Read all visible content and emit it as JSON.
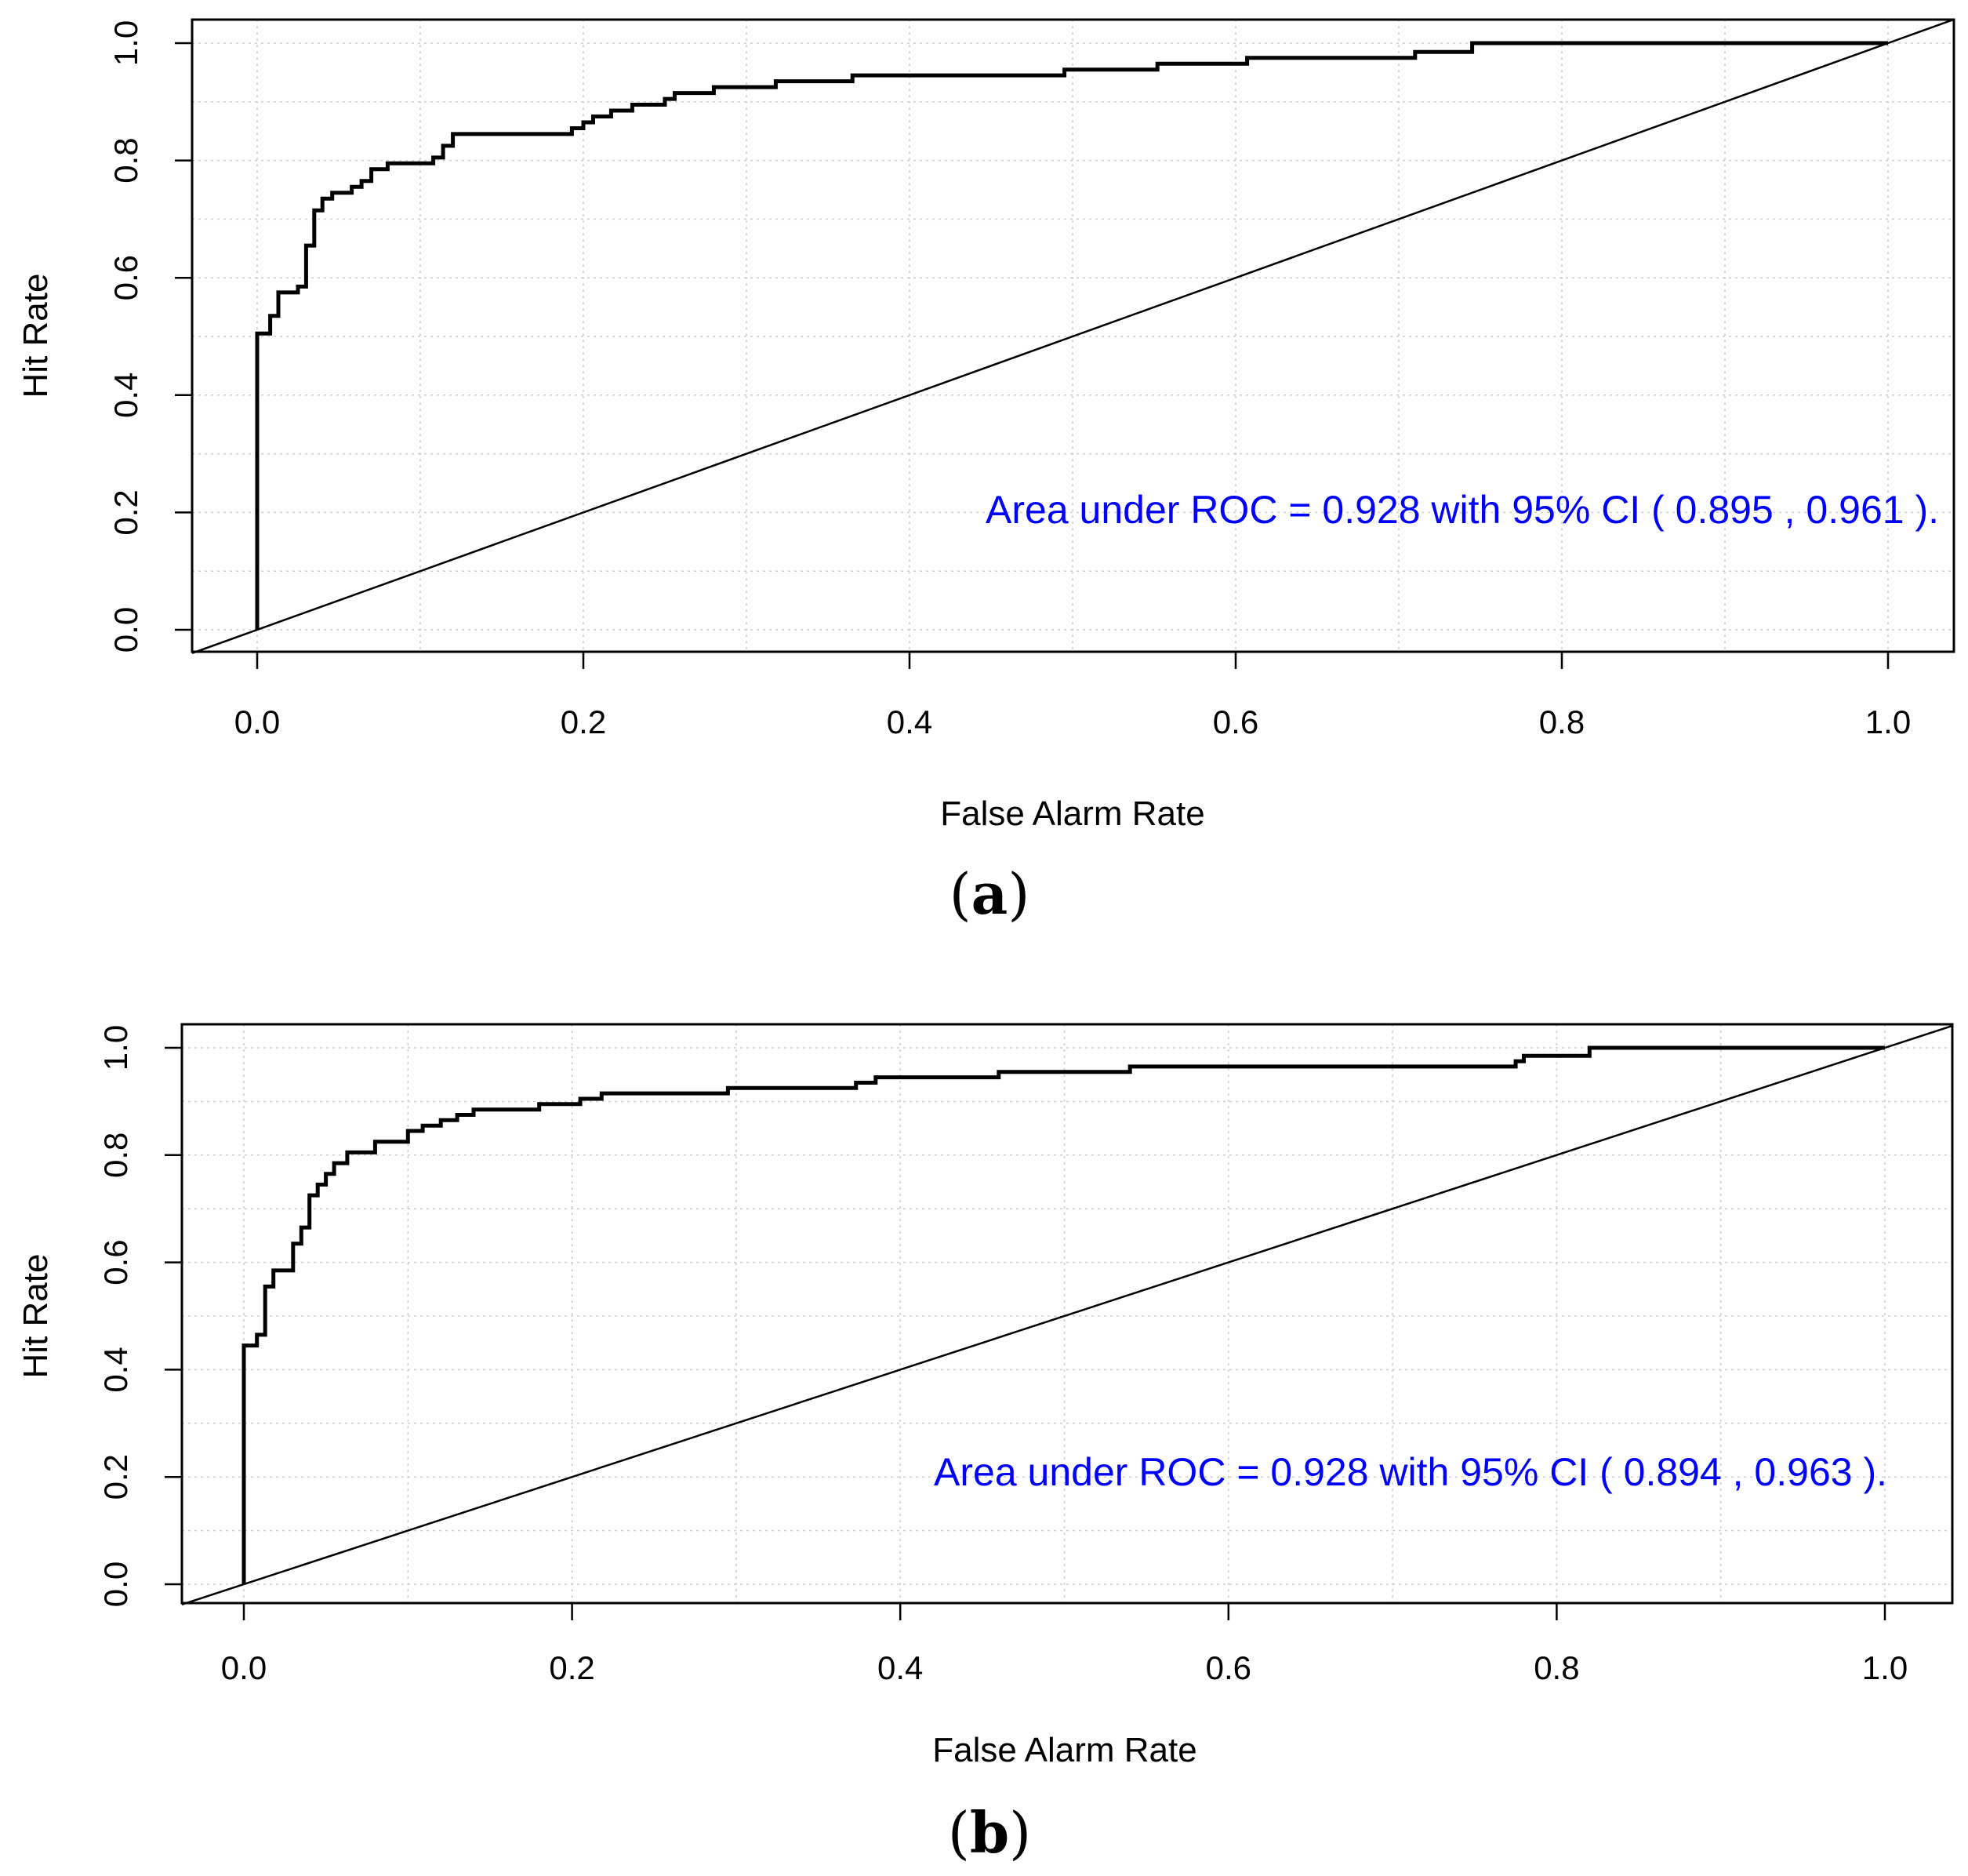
{
  "chart_data": [
    {
      "type": "line",
      "panel_label": "a",
      "xlabel": "False Alarm Rate",
      "ylabel": "Hit Rate",
      "xlim": [
        0,
        1
      ],
      "ylim": [
        0,
        1
      ],
      "xticks": [
        "0.0",
        "0.2",
        "0.4",
        "0.6",
        "0.8",
        "1.0"
      ],
      "yticks": [
        "0.0",
        "0.2",
        "0.4",
        "0.6",
        "0.8",
        "1.0"
      ],
      "grid": true,
      "annotation": "Area under ROC =  0.928 with 95% CI ( 0.895 , 0.961 ).",
      "annotation_color": "#0000ff",
      "reference_line": {
        "x": [
          0,
          1
        ],
        "y": [
          0,
          1
        ]
      },
      "series": [
        {
          "name": "ROC",
          "x": [
            0,
            0,
            0.008,
            0.008,
            0.013,
            0.013,
            0.025,
            0.025,
            0.03,
            0.03,
            0.035,
            0.035,
            0.04,
            0.04,
            0.046,
            0.046,
            0.058,
            0.058,
            0.064,
            0.064,
            0.07,
            0.07,
            0.08,
            0.08,
            0.108,
            0.108,
            0.114,
            0.114,
            0.12,
            0.12,
            0.193,
            0.193,
            0.2,
            0.2,
            0.206,
            0.206,
            0.217,
            0.217,
            0.23,
            0.23,
            0.25,
            0.25,
            0.256,
            0.256,
            0.28,
            0.28,
            0.318,
            0.318,
            0.365,
            0.365,
            0.495,
            0.495,
            0.552,
            0.552,
            0.607,
            0.607,
            0.71,
            0.71,
            0.745,
            0.745,
            1.0
          ],
          "y": [
            0,
            0.505,
            0.505,
            0.535,
            0.535,
            0.575,
            0.575,
            0.585,
            0.585,
            0.655,
            0.655,
            0.715,
            0.715,
            0.735,
            0.735,
            0.745,
            0.745,
            0.755,
            0.755,
            0.765,
            0.765,
            0.785,
            0.785,
            0.795,
            0.795,
            0.805,
            0.805,
            0.825,
            0.825,
            0.845,
            0.845,
            0.855,
            0.855,
            0.865,
            0.865,
            0.875,
            0.875,
            0.885,
            0.885,
            0.895,
            0.895,
            0.905,
            0.905,
            0.915,
            0.915,
            0.925,
            0.925,
            0.935,
            0.935,
            0.945,
            0.945,
            0.955,
            0.955,
            0.965,
            0.965,
            0.975,
            0.975,
            0.985,
            0.985,
            1.0,
            1.0
          ]
        }
      ]
    },
    {
      "type": "line",
      "panel_label": "b",
      "xlabel": "False Alarm Rate",
      "ylabel": "Hit Rate",
      "xlim": [
        0,
        1
      ],
      "ylim": [
        0,
        1
      ],
      "xticks": [
        "0.0",
        "0.2",
        "0.4",
        "0.6",
        "0.8",
        "1.0"
      ],
      "yticks": [
        "0.0",
        "0.2",
        "0.4",
        "0.6",
        "0.8",
        "1.0"
      ],
      "grid": true,
      "annotation": "Area under ROC =  0.928 with 95% CI ( 0.894 , 0.963 ).",
      "annotation_color": "#0000ff",
      "reference_line": {
        "x": [
          0,
          1
        ],
        "y": [
          0,
          1
        ]
      },
      "series": [
        {
          "name": "ROC",
          "x": [
            0,
            0,
            0.008,
            0.008,
            0.013,
            0.013,
            0.018,
            0.018,
            0.03,
            0.03,
            0.035,
            0.035,
            0.04,
            0.04,
            0.045,
            0.045,
            0.05,
            0.05,
            0.055,
            0.055,
            0.063,
            0.063,
            0.08,
            0.08,
            0.1,
            0.1,
            0.109,
            0.109,
            0.12,
            0.12,
            0.13,
            0.13,
            0.14,
            0.14,
            0.18,
            0.18,
            0.205,
            0.205,
            0.218,
            0.218,
            0.295,
            0.295,
            0.373,
            0.373,
            0.385,
            0.385,
            0.46,
            0.46,
            0.54,
            0.54,
            0.775,
            0.775,
            0.78,
            0.78,
            0.82,
            0.82,
            1.0
          ],
          "y": [
            0,
            0.445,
            0.445,
            0.465,
            0.465,
            0.555,
            0.555,
            0.585,
            0.585,
            0.635,
            0.635,
            0.665,
            0.665,
            0.725,
            0.725,
            0.745,
            0.745,
            0.765,
            0.765,
            0.785,
            0.785,
            0.805,
            0.805,
            0.825,
            0.825,
            0.845,
            0.845,
            0.855,
            0.855,
            0.865,
            0.865,
            0.875,
            0.875,
            0.885,
            0.885,
            0.895,
            0.895,
            0.905,
            0.905,
            0.915,
            0.915,
            0.925,
            0.925,
            0.935,
            0.935,
            0.945,
            0.945,
            0.955,
            0.955,
            0.965,
            0.965,
            0.975,
            0.975,
            0.985,
            0.985,
            1.0,
            1.0
          ]
        }
      ]
    }
  ]
}
